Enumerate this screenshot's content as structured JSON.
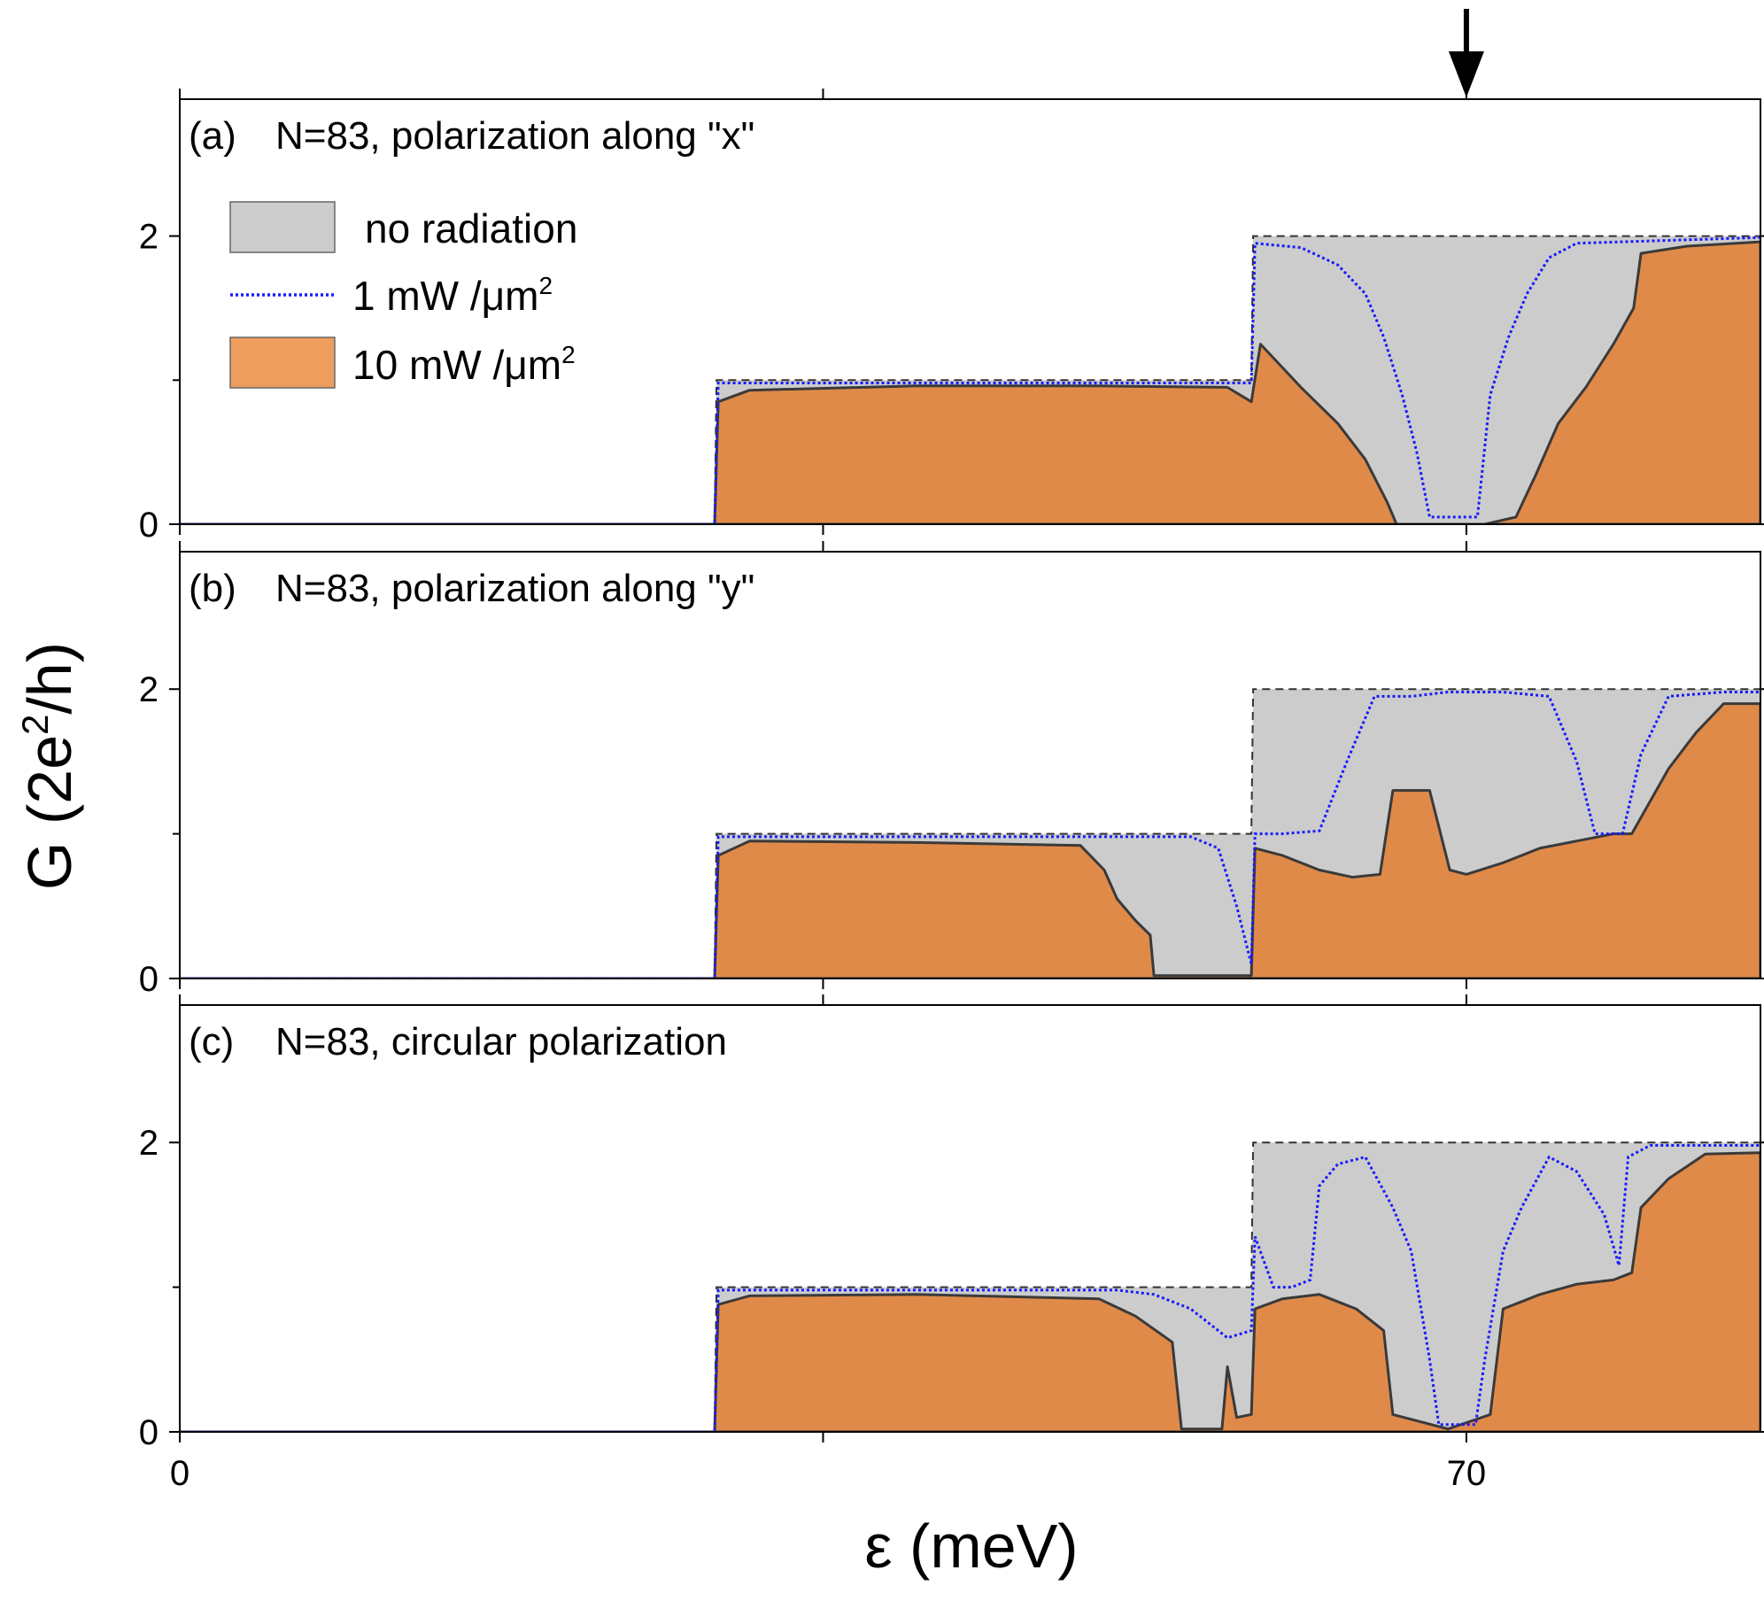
{
  "chart_data": {
    "type": "area",
    "xlabel": "ε (meV)",
    "ylabel": "G (2e²/h)",
    "xlim": [
      0,
      86
    ],
    "ylim": [
      0,
      2.95
    ],
    "x_ticks": [
      {
        "value": 0,
        "label": "0"
      },
      {
        "value": 70,
        "label": "70"
      }
    ],
    "x_minor_ticks": [
      35
    ],
    "y_ticks": [
      {
        "value": 0,
        "label": "0"
      },
      {
        "value": 2,
        "label": "2"
      }
    ],
    "y_minor_ticks": [
      1
    ],
    "marker_arrow_x": 70,
    "legend": {
      "placement": "top-left",
      "entries": [
        {
          "label": "no radiation",
          "style": "gray-fill"
        },
        {
          "label": "1 mW /μm",
          "sup": "2",
          "style": "blue-dotted"
        },
        {
          "label": "10 mW /μm",
          "sup": "2",
          "style": "orange-fill"
        }
      ]
    },
    "colors": {
      "no_radiation": "#cccccc",
      "one_mw": "#1a1aff",
      "ten_mw": "#e08a4a",
      "ten_mw_edge": "#3a3a3a",
      "dashed": "#333333"
    },
    "panels": [
      {
        "panel_label": "(a)",
        "title": "N=83, polarization along \"x\"",
        "series": [
          {
            "name": "no radiation",
            "x": [
              0,
              29.1,
              29.2,
              58.3,
              58.4,
              86
            ],
            "y": [
              0,
              0,
              1,
              1,
              2,
              2
            ]
          },
          {
            "name": "1 mW /μm²",
            "x": [
              0,
              29.1,
              29.3,
              58.3,
              58.5,
              61,
              63,
              64.5,
              65.5,
              66.5,
              67.3,
              68,
              69.4,
              70.6,
              71.3,
              72.3,
              73.3,
              74.5,
              76,
              86
            ],
            "y": [
              0,
              0,
              0.98,
              0.98,
              1.95,
              1.92,
              1.8,
              1.6,
              1.3,
              0.9,
              0.5,
              0.05,
              0.05,
              0.05,
              0.9,
              1.3,
              1.6,
              1.85,
              1.95,
              1.99
            ]
          },
          {
            "name": "10 mW /μm²",
            "x": [
              0,
              29.1,
              29.3,
              31,
              40,
              50,
              57,
              58.3,
              58.8,
              61,
              63,
              64.5,
              65.7,
              66.2,
              69,
              71,
              72.7,
              73.8,
              75,
              76.5,
              78,
              79.1,
              79.5,
              82,
              86
            ],
            "y": [
              0,
              0,
              0.85,
              0.93,
              0.96,
              0.96,
              0.95,
              0.85,
              1.25,
              0.95,
              0.7,
              0.45,
              0.15,
              0,
              0,
              0,
              0.05,
              0.35,
              0.7,
              0.95,
              1.25,
              1.5,
              1.88,
              1.93,
              1.96
            ]
          }
        ]
      },
      {
        "panel_label": "(b)",
        "title": "N=83, polarization along \"y\"",
        "series": [
          {
            "name": "no radiation",
            "x": [
              0,
              29.1,
              29.2,
              58.3,
              58.4,
              86
            ],
            "y": [
              0,
              0,
              1,
              1,
              2,
              2
            ]
          },
          {
            "name": "1 mW /μm²",
            "x": [
              0,
              29.1,
              29.3,
              55,
              56.5,
              57.5,
              58.3,
              58.5,
              60,
              62,
              63.5,
              65,
              67,
              69,
              72,
              74.5,
              76,
              77,
              78,
              78.5,
              79.5,
              81,
              84,
              86
            ],
            "y": [
              0,
              0,
              0.98,
              0.98,
              0.9,
              0.5,
              0.1,
              1.0,
              1.0,
              1.02,
              1.5,
              1.95,
              1.95,
              1.98,
              1.98,
              1.95,
              1.5,
              1.0,
              1.0,
              1.0,
              1.55,
              1.95,
              1.98,
              1.98
            ]
          },
          {
            "name": "10 mW /μm²",
            "x": [
              0,
              29.1,
              29.3,
              31,
              40,
              49,
              50.3,
              51,
              52,
              52.8,
              53,
              54.7,
              58.3,
              58.5,
              60,
              62,
              63.8,
              65.3,
              66,
              68,
              69.1,
              70,
              72,
              74,
              76,
              78,
              79,
              81,
              82.5,
              84,
              86
            ],
            "y": [
              0,
              0,
              0.85,
              0.95,
              0.94,
              0.92,
              0.75,
              0.55,
              0.4,
              0.3,
              0.02,
              0.02,
              0.02,
              0.9,
              0.85,
              0.75,
              0.7,
              0.72,
              1.3,
              1.3,
              0.75,
              0.72,
              0.8,
              0.9,
              0.95,
              1.0,
              1.0,
              1.45,
              1.7,
              1.9,
              1.9
            ]
          }
        ]
      },
      {
        "panel_label": "(c)",
        "title": "N=83, circular polarization",
        "series": [
          {
            "name": "no radiation",
            "x": [
              0,
              29.1,
              29.2,
              58.3,
              58.4,
              86
            ],
            "y": [
              0,
              0,
              1,
              1,
              2,
              2
            ]
          },
          {
            "name": "1 mW /μm²",
            "x": [
              0,
              29.1,
              29.3,
              51,
              53,
              55,
              57,
              58.3,
              58.5,
              59.5,
              60.5,
              61.5,
              62,
              63,
              64.5,
              66,
              67,
              68,
              68.5,
              70.5,
              71,
              72,
              73,
              74.5,
              76,
              77.5,
              78.3,
              78.8,
              80,
              86
            ],
            "y": [
              0,
              0,
              0.98,
              0.98,
              0.95,
              0.85,
              0.65,
              0.7,
              1.35,
              1.0,
              1.0,
              1.05,
              1.7,
              1.85,
              1.9,
              1.55,
              1.25,
              0.5,
              0.05,
              0.05,
              0.5,
              1.25,
              1.55,
              1.9,
              1.8,
              1.5,
              1.15,
              1.9,
              1.98,
              1.98
            ]
          },
          {
            "name": "10 mW /μm²",
            "x": [
              0,
              29.1,
              29.3,
              31,
              40,
              50,
              52,
              54,
              54.5,
              56.7,
              57,
              57.5,
              58.3,
              58.5,
              60,
              62,
              64,
              65.5,
              66,
              69,
              71.3,
              72,
              74,
              76,
              78,
              79,
              79.5,
              81,
              83,
              86
            ],
            "y": [
              0,
              0,
              0.88,
              0.94,
              0.95,
              0.92,
              0.8,
              0.62,
              0.02,
              0.02,
              0.45,
              0.1,
              0.12,
              0.85,
              0.92,
              0.95,
              0.85,
              0.7,
              0.12,
              0.02,
              0.12,
              0.85,
              0.95,
              1.02,
              1.05,
              1.1,
              1.55,
              1.75,
              1.92,
              1.93
            ]
          }
        ]
      }
    ]
  }
}
